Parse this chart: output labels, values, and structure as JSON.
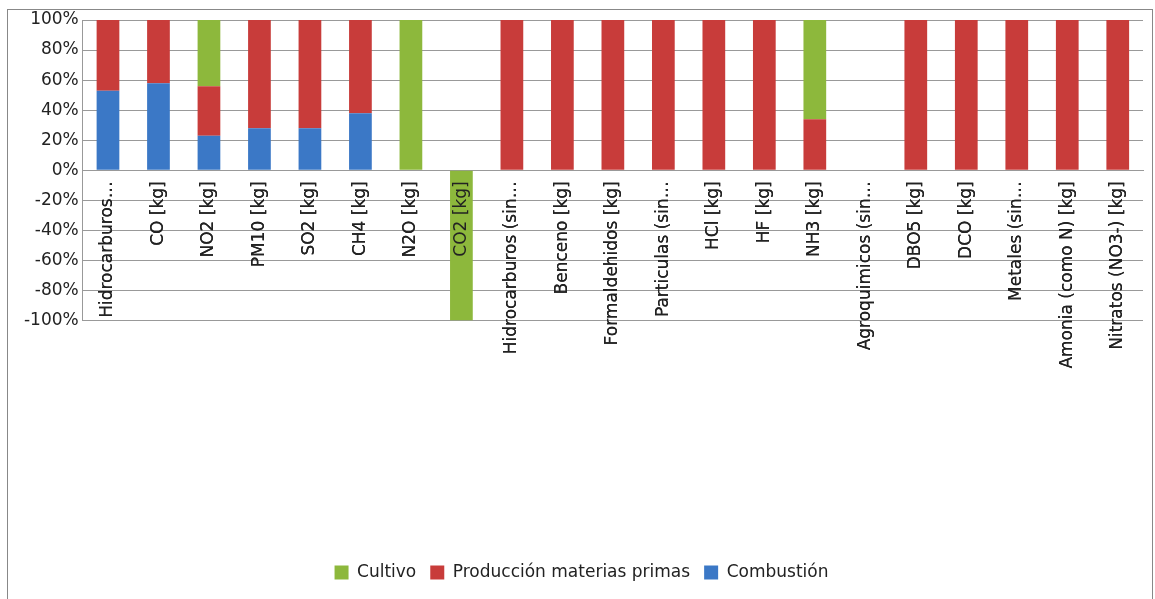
{
  "chart_data": {
    "type": "bar",
    "stacked": true,
    "categories": [
      "Hidrocarburos…",
      "CO [kg]",
      "NO2 [kg]",
      "PM10 [kg]",
      "SO2 [kg]",
      "CH4 [kg]",
      "N2O [kg]",
      "CO2 [kg]",
      "Hidrocarburos (sin…",
      "Benceno [kg]",
      "Formaldehidos [kg]",
      "Particulas (sin…",
      "HCl [kg]",
      "HF [kg]",
      "NH3 [kg]",
      "Agroquimicos (sin…",
      "DBO5 [kg]",
      "DCO [kg]",
      "Metales (sin…",
      "Amonia (como N) [kg]",
      "Nitratos (NO3-) [kg]"
    ],
    "series": [
      {
        "name": "Combustión",
        "color": "#3b78c6",
        "values": [
          53,
          58,
          23,
          28,
          28,
          38,
          null,
          null,
          null,
          null,
          null,
          null,
          null,
          null,
          null,
          null,
          null,
          null,
          null,
          null,
          null
        ]
      },
      {
        "name": "Producción materias primas",
        "color": "#c83c3a",
        "values": [
          47,
          42,
          33,
          72,
          72,
          62,
          null,
          null,
          100,
          100,
          100,
          100,
          100,
          100,
          34,
          null,
          100,
          100,
          100,
          100,
          100
        ]
      },
      {
        "name": "Cultivo",
        "color": "#8db83c",
        "values": [
          null,
          null,
          44,
          null,
          null,
          null,
          100,
          -100,
          null,
          null,
          null,
          null,
          null,
          null,
          66,
          null,
          null,
          null,
          null,
          null,
          null
        ]
      }
    ],
    "ylim": [
      -100,
      100
    ],
    "yticks": [
      {
        "value": -100,
        "label": "-100%"
      },
      {
        "value": -80,
        "label": "-80%"
      },
      {
        "value": -60,
        "label": "-60%"
      },
      {
        "value": -40,
        "label": "-40%"
      },
      {
        "value": -20,
        "label": "-20%"
      },
      {
        "value": 0,
        "label": "0%"
      },
      {
        "value": 20,
        "label": "20%"
      },
      {
        "value": 40,
        "label": "40%"
      },
      {
        "value": 60,
        "label": "60%"
      },
      {
        "value": 80,
        "label": "80%"
      },
      {
        "value": 100,
        "label": "100%"
      }
    ],
    "grid": "y",
    "legend": "bottom"
  }
}
